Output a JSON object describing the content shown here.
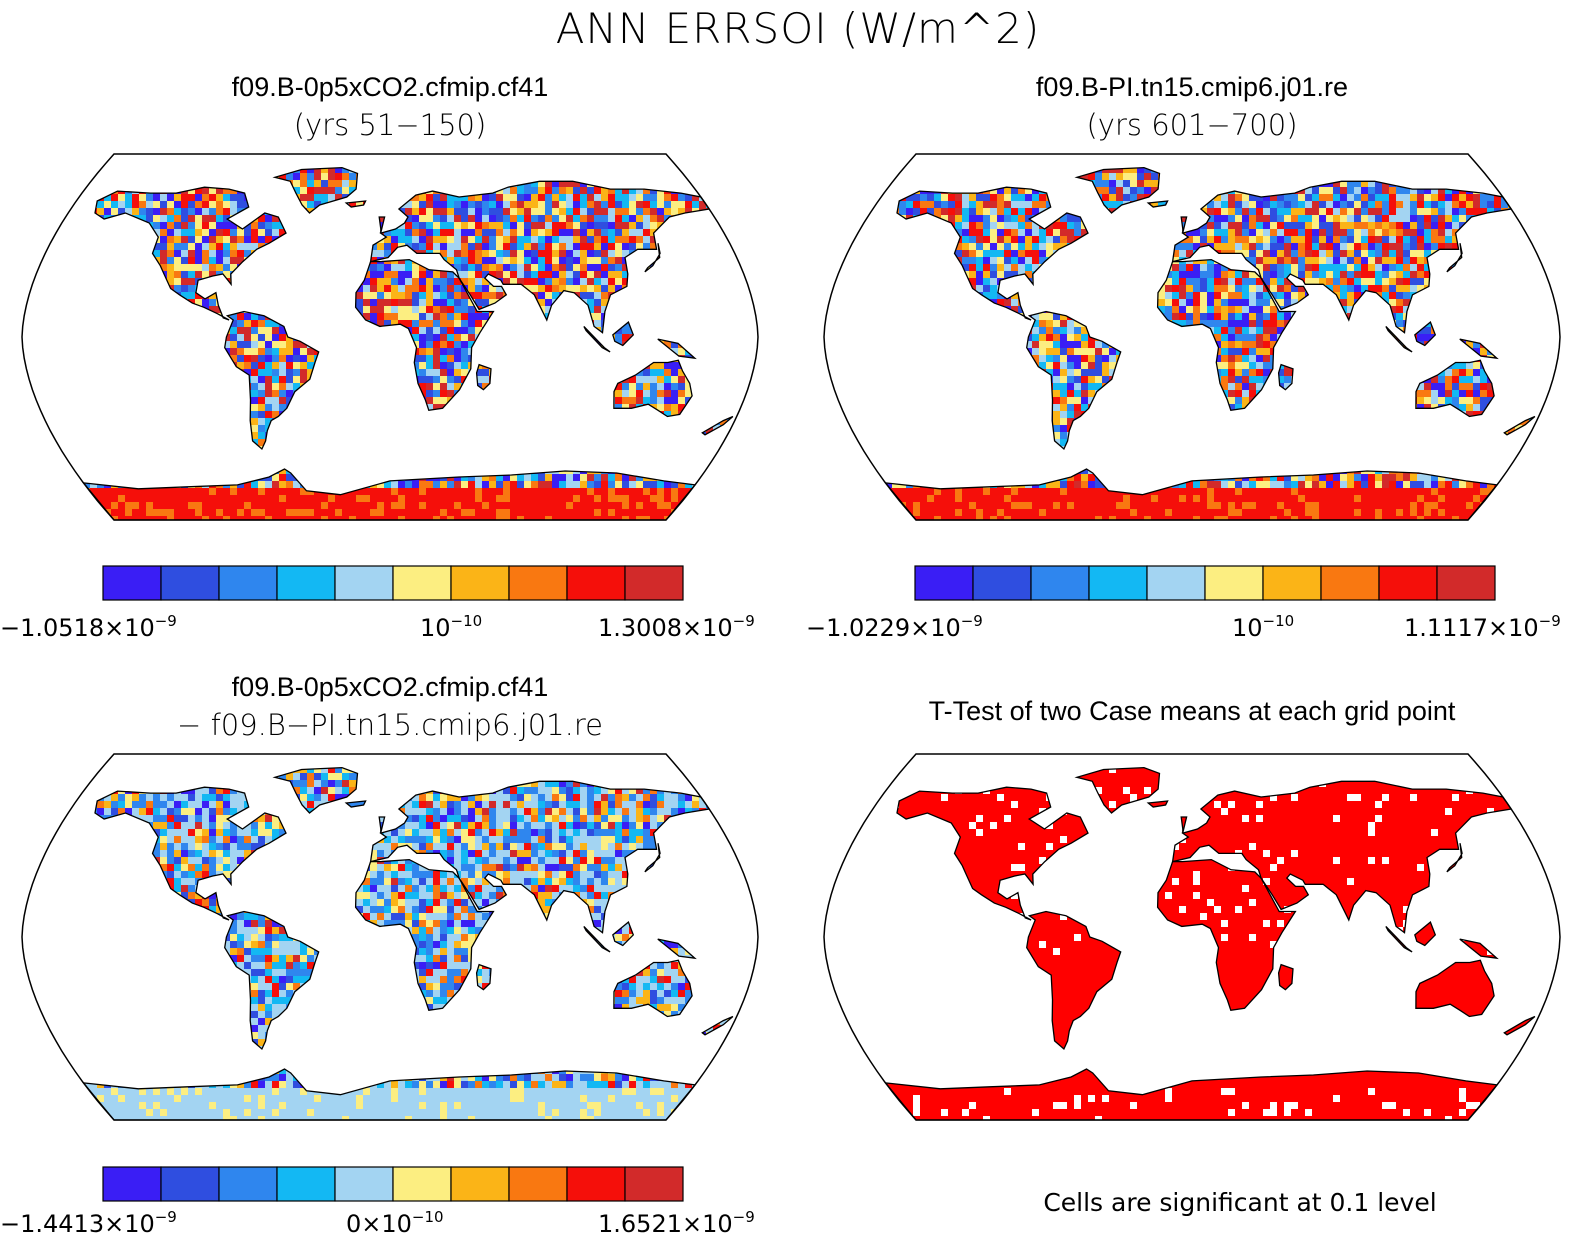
{
  "figure": {
    "title": "ANN ERRSOI (W/m^2)"
  },
  "palette": [
    "#3a1ef5",
    "#2f4ee0",
    "#2f86ee",
    "#13b8f3",
    "#a3d4f2",
    "#fcee81",
    "#fbb417",
    "#f97811",
    "#f50f0a",
    "#d22a2a"
  ],
  "panels": [
    {
      "id": "case1",
      "title": "f09.B-0p5xCO2.cfmip.cf41",
      "subtitle": "(yrs 51−150)",
      "colorbar": {
        "min_mantissa": "−1.0518×10",
        "min_exp": "−9",
        "mid_mantissa": "10",
        "mid_exp": "−10",
        "max_mantissa": "1.3008×10",
        "max_exp": "−9"
      }
    },
    {
      "id": "case2",
      "title": "f09.B-PI.tn15.cmip6.j01.re",
      "subtitle": "(yrs 601−700)",
      "colorbar": {
        "min_mantissa": "−1.0229×10",
        "min_exp": "−9",
        "mid_mantissa": "10",
        "mid_exp": "−10",
        "max_mantissa": "1.1117×10",
        "max_exp": "−9"
      }
    },
    {
      "id": "diff",
      "title": "f09.B-0p5xCO2.cfmip.cf41",
      "subtitle": "− f09.B−PI.tn15.cmip6.j01.re",
      "colorbar": {
        "min_mantissa": "−1.4413×10",
        "min_exp": "−9",
        "mid_mantissa": "0×10",
        "mid_exp": "−10",
        "max_mantissa": "1.6521×10",
        "max_exp": "−9"
      }
    },
    {
      "id": "ttest",
      "title": "T-Test of two Case means at each grid point",
      "note": "Cells are significant at 0.1 level",
      "fill_color": "#ff0000"
    }
  ]
}
